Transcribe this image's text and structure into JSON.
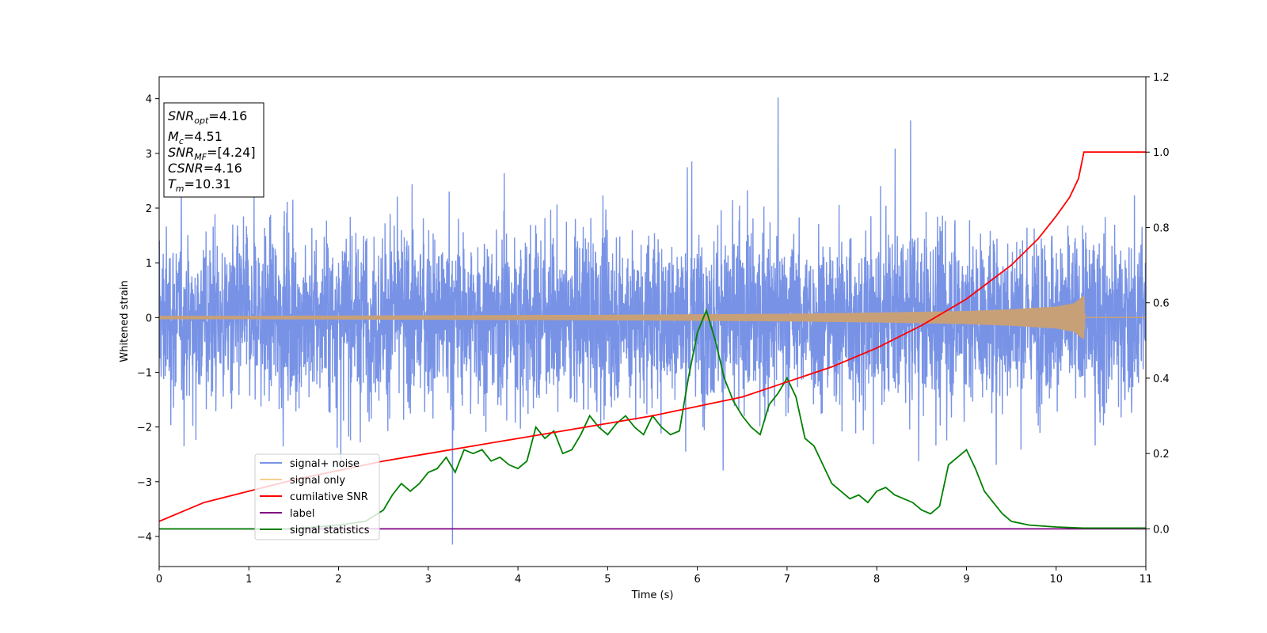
{
  "chart_data": {
    "type": "line",
    "xlabel": "Time (s)",
    "ylabel": "Whitened strain",
    "xlim": [
      0,
      11
    ],
    "ylim": [
      -4.55,
      4.4
    ],
    "y2lim": [
      -0.1,
      1.2
    ],
    "x_ticks": [
      "0",
      "1",
      "2",
      "3",
      "4",
      "5",
      "6",
      "7",
      "8",
      "9",
      "10",
      "11"
    ],
    "y_ticks": [
      "−4",
      "−3",
      "−2",
      "−1",
      "0",
      "1",
      "2",
      "3",
      "4"
    ],
    "y2_ticks": [
      "0.0",
      "0.2",
      "0.4",
      "0.6",
      "0.8",
      "1.0",
      "1.2"
    ],
    "grid": false,
    "legend_position": "lower-left",
    "annotation": {
      "snr_opt": {
        "main": "SNR",
        "sub": "opt",
        "value": "=4.16"
      },
      "mc": {
        "main": "M",
        "sub": "c",
        "value": "=4.51"
      },
      "snr_mf": {
        "main": "SNR",
        "sub": "MF",
        "value": "=[4.24]"
      },
      "csnr": {
        "main": "CSNR",
        "value": "=4.16"
      },
      "tm": {
        "main": "T",
        "sub": "m",
        "value": "=10.31"
      }
    },
    "series": [
      {
        "name": "signal+ noise",
        "axis": "left",
        "color": "#7893e6",
        "description_stats": {
          "center": 0,
          "typical_range": [
            -2.2,
            2.3
          ],
          "max": 4.02,
          "min": -4.15
        }
      },
      {
        "name": "signal only",
        "axis": "left",
        "color": "#c8a078",
        "envelope": {
          "x": [
            0,
            1,
            2,
            3,
            4,
            5,
            6,
            7,
            8,
            9,
            9.5,
            10,
            10.2,
            10.31,
            10.32,
            11
          ],
          "amplitude": [
            0.03,
            0.03,
            0.035,
            0.04,
            0.045,
            0.05,
            0.06,
            0.07,
            0.09,
            0.12,
            0.15,
            0.2,
            0.26,
            0.4,
            0,
            0
          ]
        }
      },
      {
        "name": "cumilative SNR",
        "axis": "right",
        "color": "#ff0000",
        "x": [
          0,
          0.5,
          1,
          1.5,
          2,
          2.5,
          3,
          3.5,
          4,
          4.5,
          5,
          5.5,
          6,
          6.5,
          7,
          7.5,
          8,
          8.5,
          9,
          9.5,
          9.8,
          10,
          10.15,
          10.25,
          10.31,
          11
        ],
        "values": [
          0.02,
          0.07,
          0.1,
          0.13,
          0.155,
          0.18,
          0.2,
          0.22,
          0.24,
          0.26,
          0.28,
          0.3,
          0.325,
          0.35,
          0.39,
          0.43,
          0.48,
          0.54,
          0.61,
          0.7,
          0.77,
          0.83,
          0.88,
          0.93,
          1.0,
          1.0
        ]
      },
      {
        "name": "label",
        "axis": "right",
        "color": "#800080",
        "x": [
          0,
          11
        ],
        "values": [
          0,
          0
        ]
      },
      {
        "name": "signal statistics",
        "axis": "right",
        "color": "#008000",
        "x": [
          0,
          1.5,
          2,
          2.3,
          2.5,
          2.6,
          2.7,
          2.8,
          2.9,
          3.0,
          3.1,
          3.2,
          3.3,
          3.4,
          3.5,
          3.6,
          3.7,
          3.8,
          3.9,
          4.0,
          4.1,
          4.2,
          4.3,
          4.4,
          4.5,
          4.6,
          4.7,
          4.8,
          4.9,
          5.0,
          5.1,
          5.2,
          5.3,
          5.4,
          5.5,
          5.6,
          5.7,
          5.8,
          5.9,
          6.0,
          6.1,
          6.2,
          6.3,
          6.4,
          6.5,
          6.6,
          6.7,
          6.8,
          6.9,
          7.0,
          7.1,
          7.2,
          7.3,
          7.4,
          7.5,
          7.6,
          7.7,
          7.8,
          7.9,
          8.0,
          8.1,
          8.2,
          8.3,
          8.4,
          8.5,
          8.6,
          8.7,
          8.8,
          8.9,
          9.0,
          9.1,
          9.2,
          9.3,
          9.4,
          9.5,
          9.7,
          10.0,
          10.3,
          11.0
        ],
        "values": [
          0,
          0,
          0.01,
          0.02,
          0.05,
          0.09,
          0.12,
          0.1,
          0.12,
          0.15,
          0.16,
          0.19,
          0.15,
          0.21,
          0.2,
          0.21,
          0.18,
          0.19,
          0.17,
          0.16,
          0.18,
          0.27,
          0.24,
          0.26,
          0.2,
          0.21,
          0.25,
          0.3,
          0.27,
          0.25,
          0.28,
          0.3,
          0.27,
          0.25,
          0.3,
          0.27,
          0.25,
          0.26,
          0.4,
          0.52,
          0.58,
          0.5,
          0.4,
          0.34,
          0.3,
          0.27,
          0.25,
          0.33,
          0.36,
          0.4,
          0.35,
          0.24,
          0.22,
          0.17,
          0.12,
          0.1,
          0.08,
          0.09,
          0.07,
          0.1,
          0.11,
          0.09,
          0.08,
          0.07,
          0.05,
          0.04,
          0.06,
          0.17,
          0.19,
          0.21,
          0.16,
          0.1,
          0.07,
          0.04,
          0.02,
          0.01,
          0.005,
          0.002,
          0.002
        ]
      }
    ]
  }
}
